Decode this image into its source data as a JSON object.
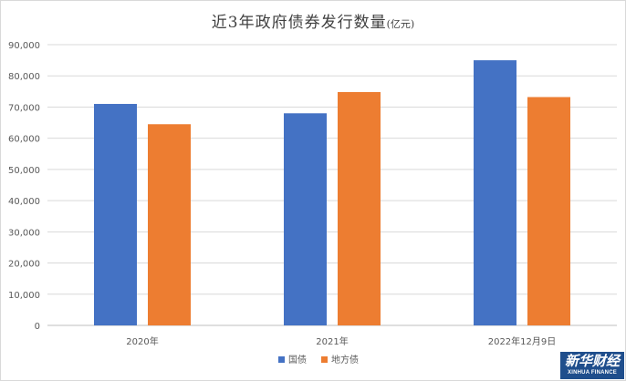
{
  "chart_data": {
    "type": "bar",
    "title": "近3年政府债券发行数量",
    "title_unit": "(亿元)",
    "categories": [
      "2020年",
      "2021年",
      "2022年12月9日"
    ],
    "series": [
      {
        "name": "国债",
        "color": "#4472c4",
        "values": [
          71000,
          68000,
          85000
        ]
      },
      {
        "name": "地方债",
        "color": "#ed7d31",
        "values": [
          64500,
          74800,
          73200
        ]
      }
    ],
    "ylim": [
      0,
      90000
    ],
    "y_ticks": [
      "0",
      "10,000",
      "20,000",
      "30,000",
      "40,000",
      "50,000",
      "60,000",
      "70,000",
      "80,000",
      "90,000"
    ],
    "y_tick_values": [
      0,
      10000,
      20000,
      30000,
      40000,
      50000,
      60000,
      70000,
      80000,
      90000
    ],
    "grid": true,
    "legend_position": "bottom"
  },
  "watermark": {
    "main": "新华财经",
    "sub": "XINHUA FINANCE"
  }
}
